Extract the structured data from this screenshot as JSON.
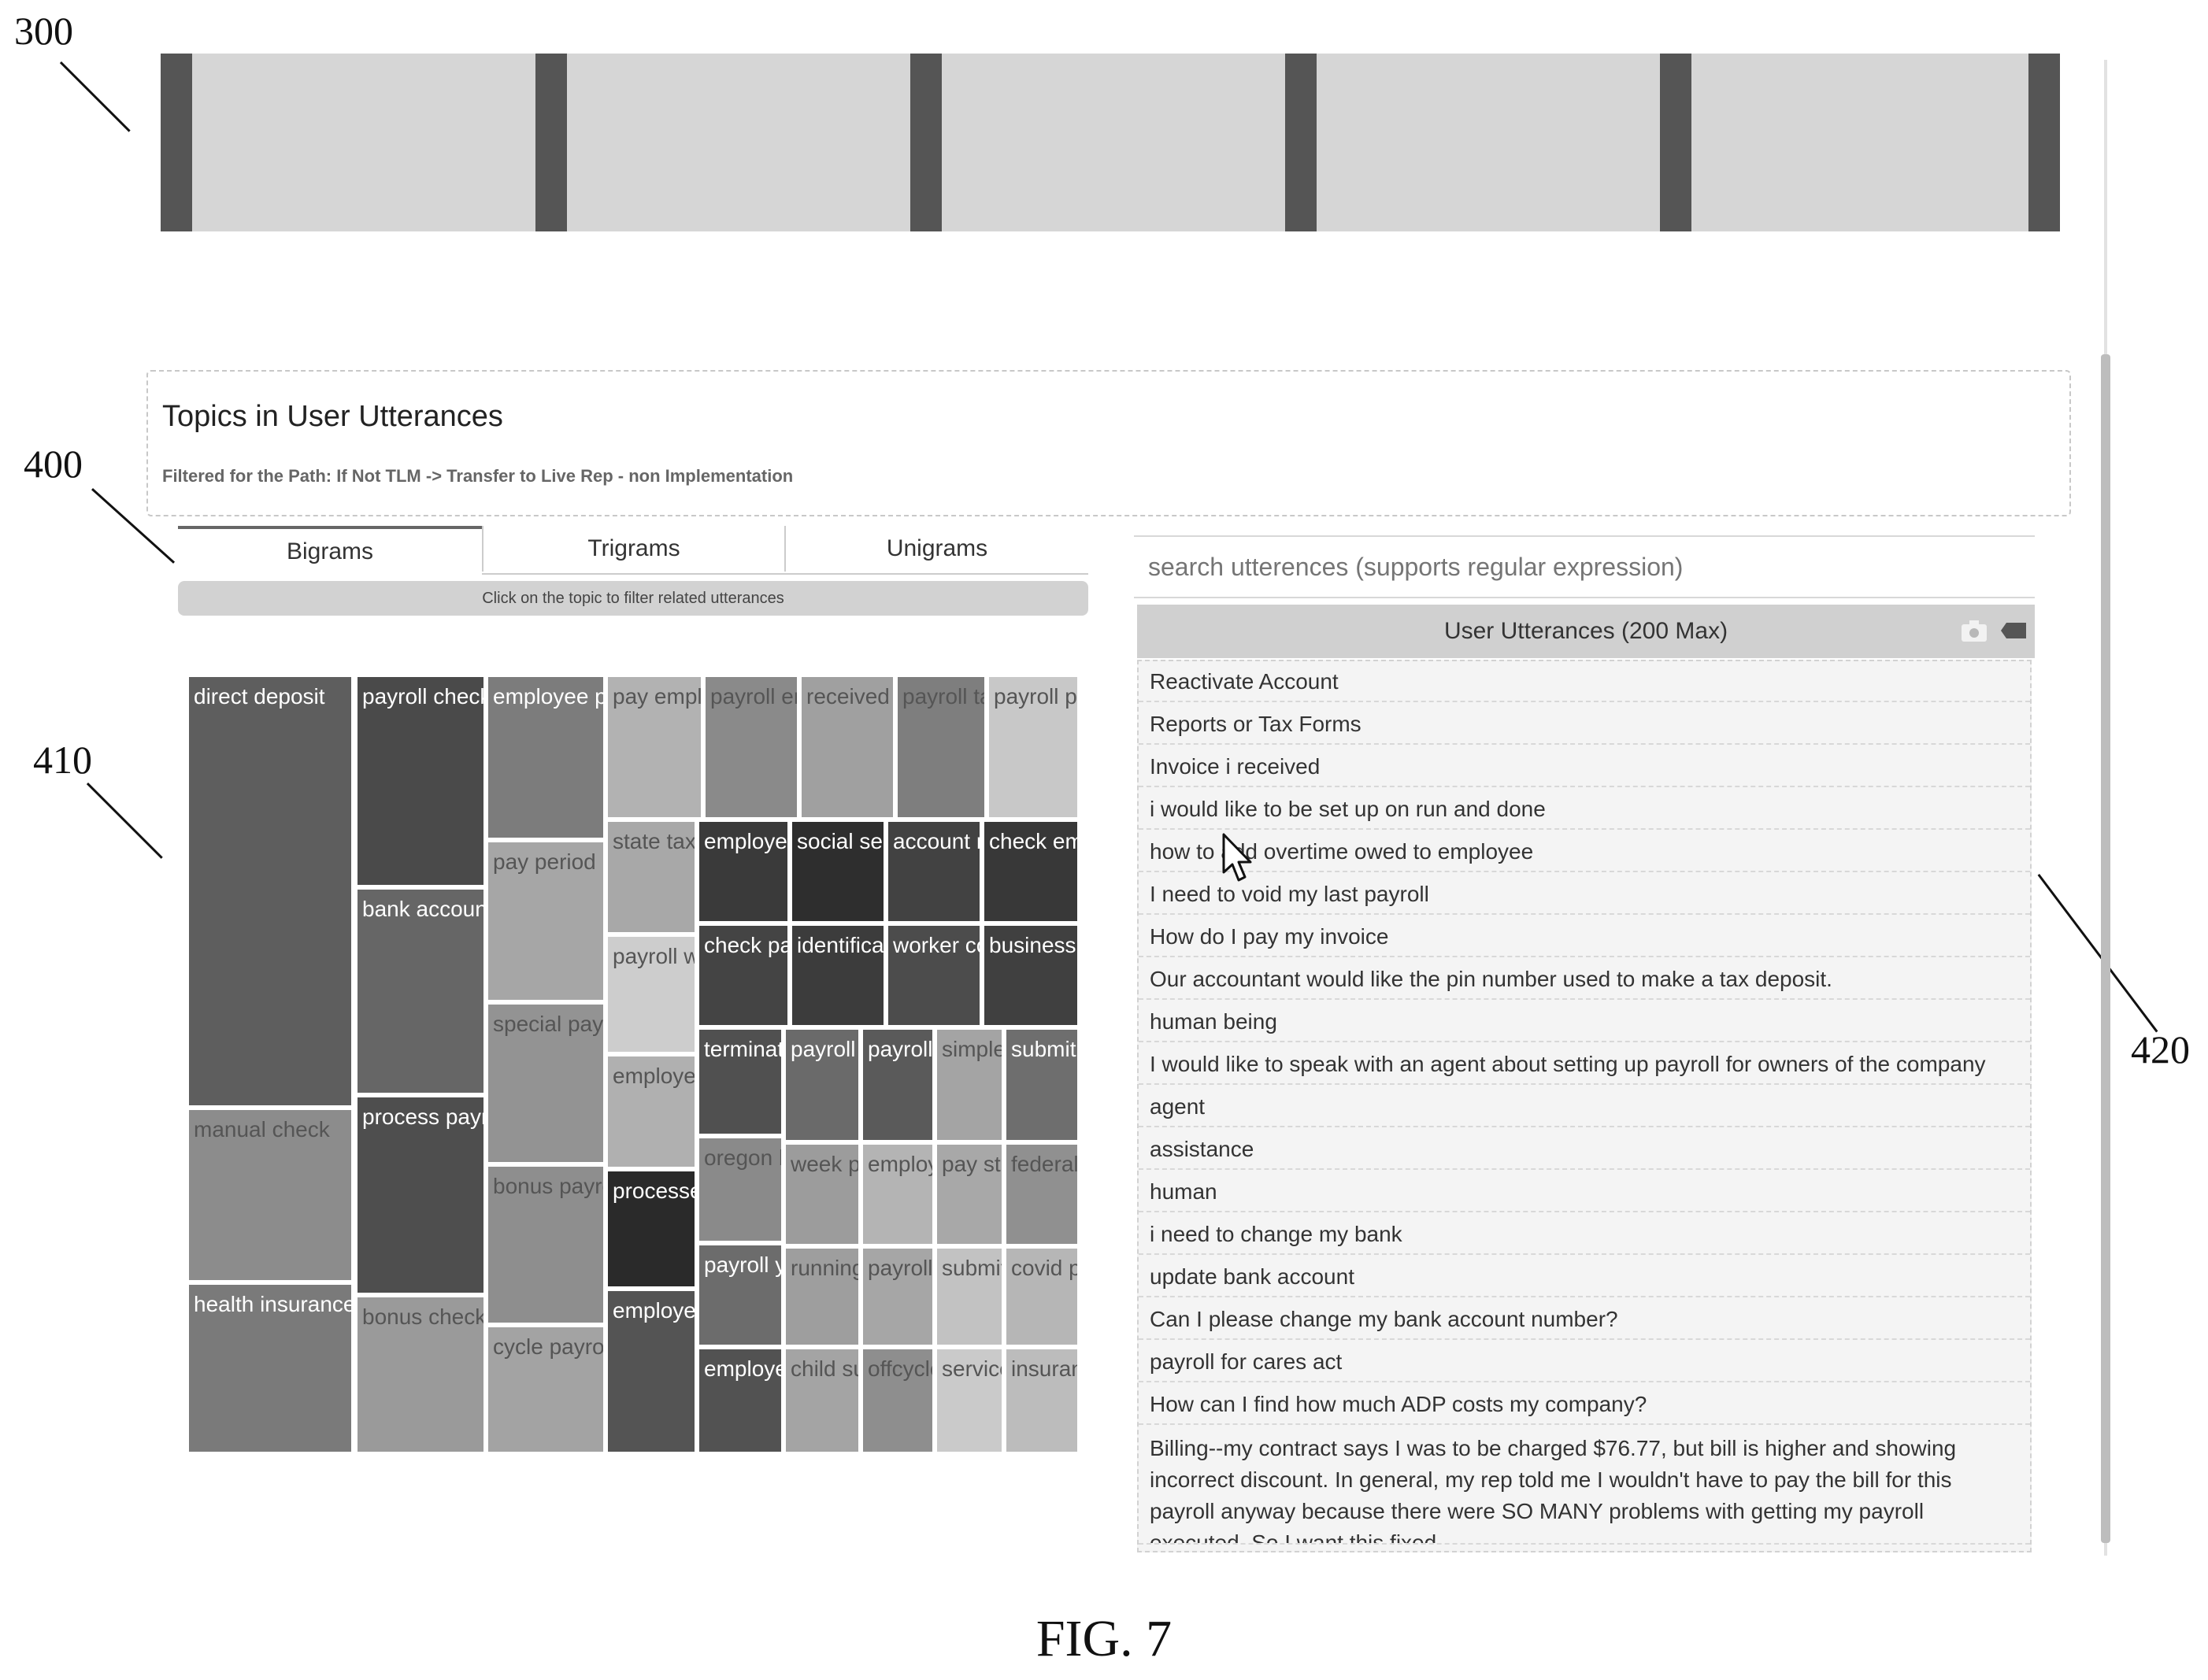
{
  "refs": {
    "r300": "300",
    "r400": "400",
    "r410": "410",
    "r420": "420"
  },
  "header": {
    "title": "Topics in User Utterances",
    "subtitle": "Filtered for the Path: If Not TLM -> Transfer to Live Rep - non Implementation"
  },
  "tabs": {
    "bigrams": "Bigrams",
    "trigrams": "Trigrams",
    "unigrams": "Unigrams"
  },
  "hint": "Click on the topic to filter related utterances",
  "treemap": {
    "tiles": [
      {
        "label": "direct deposit",
        "color": "#5e5e5e"
      },
      {
        "label": "manual check",
        "color": "#8c8c8c"
      },
      {
        "label": "health insurance",
        "color": "#7a7a7a"
      },
      {
        "label": "payroll check",
        "color": "#4a4a4a"
      },
      {
        "label": "bank account",
        "color": "#666666"
      },
      {
        "label": "process payro",
        "color": "#4e4e4e"
      },
      {
        "label": "bonus check",
        "color": "#9a9a9a"
      },
      {
        "label": "employee pa",
        "color": "#7c7c7c"
      },
      {
        "label": "pay period",
        "color": "#a6a6a6"
      },
      {
        "label": "special payro",
        "color": "#939393"
      },
      {
        "label": "bonus payrol",
        "color": "#8e8e8e"
      },
      {
        "label": "cycle payroll",
        "color": "#a3a3a3"
      },
      {
        "label": "pay emplo",
        "color": "#b2b2b2"
      },
      {
        "label": "payroll em",
        "color": "#8a8a8a"
      },
      {
        "label": "received e",
        "color": "#a0a0a0"
      },
      {
        "label": "payroll ta",
        "color": "#7e7e7e"
      },
      {
        "label": "payroll pro",
        "color": "#c8c8c8"
      },
      {
        "label": "state tax",
        "color": "#a8a8a8"
      },
      {
        "label": "payroll we",
        "color": "#cdcdcd"
      },
      {
        "label": "employee",
        "color": "#b0b0b0"
      },
      {
        "label": "processed",
        "color": "#2a2a2a"
      },
      {
        "label": "employee",
        "color": "#545454"
      },
      {
        "label": "employee",
        "color": "#3a3a3a"
      },
      {
        "label": "social sec",
        "color": "#2e2e2e"
      },
      {
        "label": "account n",
        "color": "#424242"
      },
      {
        "label": "check em",
        "color": "#383838"
      },
      {
        "label": "check pay",
        "color": "#444444"
      },
      {
        "label": "identificat",
        "color": "#3c3c3c"
      },
      {
        "label": "worker co",
        "color": "#4c4c4c"
      },
      {
        "label": "business t",
        "color": "#404040"
      },
      {
        "label": "terminat",
        "color": "#505050"
      },
      {
        "label": "payroll",
        "color": "#6a6a6a"
      },
      {
        "label": "payroll",
        "color": "#5a5a5a"
      },
      {
        "label": "simple i",
        "color": "#a4a4a4"
      },
      {
        "label": "submit",
        "color": "#6e6e6e"
      },
      {
        "label": "oregon b",
        "color": "#8a8a8a"
      },
      {
        "label": "week pa",
        "color": "#9c9c9c"
      },
      {
        "label": "employ",
        "color": "#b4b4b4"
      },
      {
        "label": "pay stub",
        "color": "#a8a8a8"
      },
      {
        "label": "federal",
        "color": "#909090"
      },
      {
        "label": "payroll y",
        "color": "#6c6c6c"
      },
      {
        "label": "running",
        "color": "#9e9e9e"
      },
      {
        "label": "payroll",
        "color": "#a6a6a6"
      },
      {
        "label": "submit",
        "color": "#c2c2c2"
      },
      {
        "label": "covid pa",
        "color": "#b6b6b6"
      },
      {
        "label": "employe",
        "color": "#525252"
      },
      {
        "label": "child su",
        "color": "#a4a4a4"
      },
      {
        "label": "offcycle",
        "color": "#8e8e8e"
      },
      {
        "label": "service",
        "color": "#cacaca"
      },
      {
        "label": "insuranc",
        "color": "#bcbcbc"
      }
    ]
  },
  "search": {
    "placeholder": "search utterences (supports regular expression)"
  },
  "utterances": {
    "header": "User Utterances (200 Max)",
    "items": [
      "Reactivate Account",
      "Reports or Tax Forms",
      "Invoice i received",
      "i would like to be set up on run and done",
      "how to add overtime owed to employee",
      "I need to void my last payroll",
      "How do I pay my invoice",
      "Our accountant would like the pin number used to make a tax deposit.",
      "human being",
      " I would like to speak with an agent about setting up payroll for owners of the company",
      "agent",
      "assistance",
      "human",
      " i need to change my bank",
      "update bank account",
      " Can I please change my bank account number?",
      "payroll for cares act",
      "How can I find how much ADP costs my company?",
      "Billing--my contract says I was to be charged $76.77, but bill is higher and showing incorrect discount.  In general, my rep told me I wouldn't have to pay the bill for this payroll anyway because there were SO MANY problems with getting my payroll executed.  So I want this fixed."
    ]
  },
  "caption": "FIG. 7"
}
